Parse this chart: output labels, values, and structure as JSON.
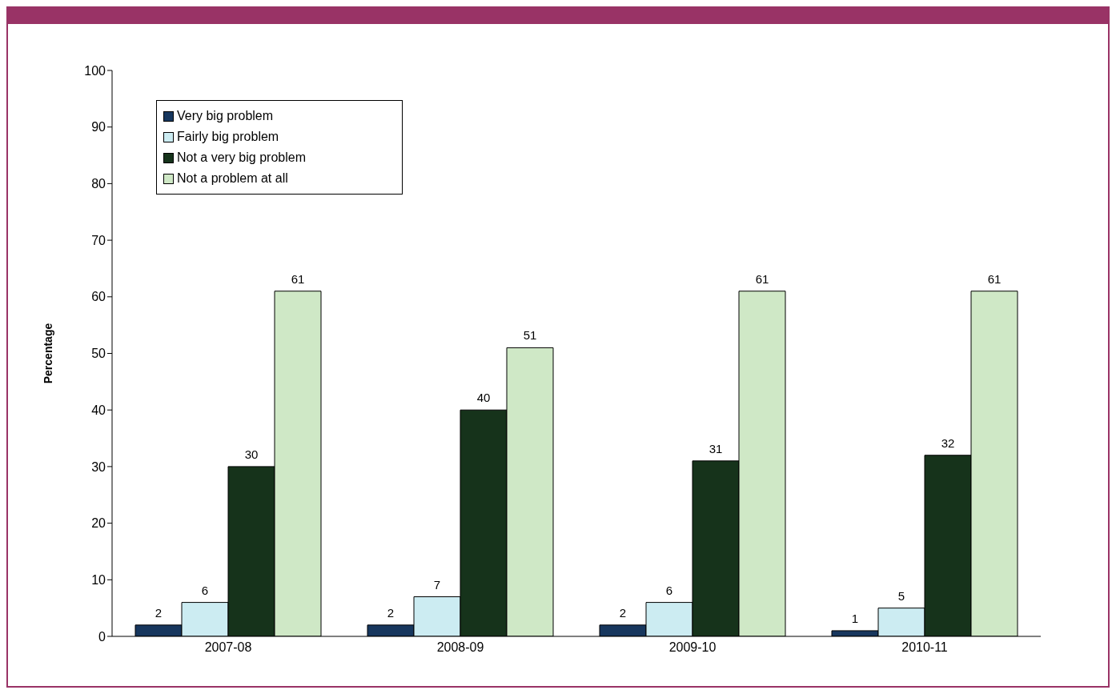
{
  "chart_data": {
    "type": "bar",
    "ylabel": "Percentage",
    "categories": [
      "2007-08",
      "2008-09",
      "2009-10",
      "2010-11"
    ],
    "series": [
      {
        "name": "Very big problem",
        "color": "#17375e",
        "values": [
          2,
          2,
          2,
          1
        ]
      },
      {
        "name": "Fairly big problem",
        "color": "#ccecf2",
        "values": [
          6,
          7,
          6,
          5
        ]
      },
      {
        "name": "Not a very big problem",
        "color": "#16331b",
        "values": [
          30,
          40,
          31,
          32
        ]
      },
      {
        "name": "Not a problem at all",
        "color": "#cfe8c6",
        "values": [
          61,
          51,
          61,
          61
        ]
      }
    ],
    "ylim": [
      0,
      100
    ],
    "yticks": [
      0,
      10,
      20,
      30,
      40,
      50,
      60,
      70,
      80,
      90,
      100
    ],
    "grid": false,
    "legend": "top left",
    "data_labels": true
  }
}
